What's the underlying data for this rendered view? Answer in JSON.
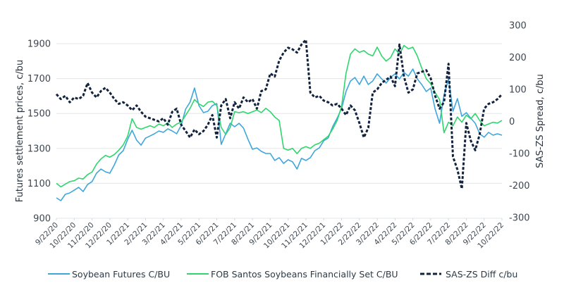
{
  "chart_data": {
    "type": "line",
    "title": "",
    "xlabel": "",
    "ylabel": "Futures settlement prices, c/bu",
    "ylabel_right": "SAS-ZS Spread, c/bu",
    "ylim": [
      900,
      1900
    ],
    "ylim_right": [
      -300,
      300
    ],
    "yticks": [
      900,
      1100,
      1300,
      1500,
      1700,
      1900
    ],
    "yticks_right": [
      -300,
      -200,
      -100,
      0,
      100,
      200,
      300
    ],
    "x_tick_labels": [
      "9/22/20",
      "10/22/20",
      "11/22/20",
      "12/22/20",
      "1/22/21",
      "2/22/21",
      "3/22/21",
      "4/22/21",
      "5/22/21",
      "6/22/21",
      "7/22/21",
      "8/22/21",
      "9/22/21",
      "10/22/21",
      "11/22/21",
      "12/22/21",
      "1/22/22",
      "2/22/22",
      "3/22/22",
      "4/22/22",
      "5/22/22",
      "6/22/22",
      "7/22/22",
      "8/22/22",
      "9/22/22",
      "10/22/22"
    ],
    "x_unit": "months since 9/22/20",
    "grid": true,
    "legend_position": "bottom",
    "series": [
      {
        "name": "Soybean Futures C/BU",
        "axis": "left",
        "color": "#3fa6dc",
        "style": "solid",
        "x": [
          0,
          0.25,
          0.5,
          0.75,
          1,
          1.25,
          1.5,
          1.75,
          2,
          2.25,
          2.5,
          2.75,
          3,
          3.25,
          3.5,
          3.75,
          4,
          4.25,
          4.5,
          4.75,
          5,
          5.25,
          5.5,
          5.75,
          6,
          6.25,
          6.5,
          6.75,
          7,
          7.25,
          7.5,
          7.75,
          8,
          8.25,
          8.5,
          8.75,
          9,
          9.25,
          9.5,
          9.75,
          10,
          10.25,
          10.5,
          10.75,
          11,
          11.25,
          11.5,
          11.75,
          12,
          12.25,
          12.5,
          12.75,
          13,
          13.25,
          13.5,
          13.75,
          14,
          14.25,
          14.5,
          14.75,
          15,
          15.25,
          15.5,
          15.75,
          16,
          16.25,
          16.5,
          16.75,
          17,
          17.25,
          17.5,
          17.75,
          18,
          18.25,
          18.5,
          18.75,
          19,
          19.25,
          19.5,
          19.75,
          20,
          20.25,
          20.5,
          20.75,
          21,
          21.25,
          21.5,
          21.75,
          22,
          22.25,
          22.5,
          22.75,
          23,
          23.25,
          23.5,
          23.75,
          24,
          24.25,
          24.5,
          24.75,
          25
        ],
        "values": [
          1017,
          1001,
          1037,
          1045,
          1061,
          1077,
          1053,
          1093,
          1110,
          1158,
          1182,
          1166,
          1158,
          1206,
          1263,
          1287,
          1352,
          1404,
          1347,
          1319,
          1359,
          1371,
          1384,
          1400,
          1392,
          1412,
          1400,
          1384,
          1432,
          1525,
          1565,
          1646,
          1545,
          1505,
          1513,
          1545,
          1557,
          1323,
          1384,
          1444,
          1424,
          1444,
          1416,
          1352,
          1295,
          1303,
          1283,
          1271,
          1271,
          1231,
          1247,
          1214,
          1235,
          1223,
          1182,
          1243,
          1231,
          1247,
          1287,
          1303,
          1344,
          1360,
          1424,
          1473,
          1529,
          1626,
          1686,
          1706,
          1666,
          1714,
          1666,
          1686,
          1727,
          1698,
          1674,
          1706,
          1727,
          1698,
          1735,
          1714,
          1755,
          1698,
          1666,
          1626,
          1646,
          1525,
          1444,
          1605,
          1698,
          1513,
          1585,
          1484,
          1505,
          1473,
          1444,
          1384,
          1364,
          1392,
          1376,
          1384,
          1376
        ]
      },
      {
        "name": "FOB Santos Soybeans Financially Set C/BU",
        "axis": "left",
        "color": "#2fd66e",
        "style": "solid",
        "x": [
          0,
          0.25,
          0.5,
          0.75,
          1,
          1.25,
          1.5,
          1.75,
          2,
          2.25,
          2.5,
          2.75,
          3,
          3.25,
          3.5,
          3.75,
          4,
          4.25,
          4.5,
          4.75,
          5,
          5.25,
          5.5,
          5.75,
          6,
          6.25,
          6.5,
          6.75,
          7,
          7.25,
          7.5,
          7.75,
          8,
          8.25,
          8.5,
          8.75,
          9,
          9.25,
          9.5,
          9.75,
          10,
          10.25,
          10.5,
          10.75,
          11,
          11.25,
          11.5,
          11.75,
          12,
          12.25,
          12.5,
          12.75,
          13,
          13.25,
          13.5,
          13.75,
          14,
          14.25,
          14.5,
          14.75,
          15,
          15.25,
          15.5,
          15.75,
          16,
          16.25,
          16.5,
          16.75,
          17,
          17.25,
          17.5,
          17.75,
          18,
          18.25,
          18.5,
          18.75,
          19,
          19.25,
          19.5,
          19.75,
          20,
          20.25,
          20.5,
          20.75,
          21,
          21.25,
          21.5,
          21.75,
          22,
          22.25,
          22.5,
          22.75,
          23,
          23.25,
          23.5,
          23.75,
          24,
          24.25,
          24.5,
          24.75,
          25
        ],
        "values": [
          1100,
          1080,
          1095,
          1110,
          1115,
          1130,
          1125,
          1150,
          1165,
          1210,
          1240,
          1260,
          1250,
          1265,
          1290,
          1320,
          1370,
          1470,
          1420,
          1410,
          1420,
          1430,
          1420,
          1440,
          1430,
          1445,
          1420,
          1440,
          1450,
          1490,
          1530,
          1580,
          1555,
          1540,
          1565,
          1570,
          1545,
          1420,
          1380,
          1420,
          1510,
          1505,
          1510,
          1500,
          1510,
          1520,
          1505,
          1530,
          1510,
          1480,
          1460,
          1300,
          1290,
          1300,
          1270,
          1300,
          1310,
          1300,
          1320,
          1330,
          1350,
          1370,
          1410,
          1460,
          1540,
          1730,
          1840,
          1870,
          1850,
          1860,
          1840,
          1830,
          1880,
          1830,
          1800,
          1820,
          1870,
          1840,
          1890,
          1870,
          1880,
          1830,
          1760,
          1700,
          1670,
          1620,
          1580,
          1390,
          1450,
          1430,
          1480,
          1450,
          1490,
          1470,
          1500,
          1460,
          1430,
          1440,
          1450,
          1445,
          1460
        ]
      },
      {
        "name": "SAS-ZS Diff c/bu",
        "axis": "right",
        "color": "#13233f",
        "style": "dashed",
        "x": [
          0,
          0.25,
          0.5,
          0.75,
          1,
          1.25,
          1.5,
          1.75,
          2,
          2.25,
          2.5,
          2.75,
          3,
          3.25,
          3.5,
          3.75,
          4,
          4.25,
          4.5,
          4.75,
          5,
          5.25,
          5.5,
          5.75,
          6,
          6.25,
          6.5,
          6.75,
          7,
          7.25,
          7.5,
          7.75,
          8,
          8.25,
          8.5,
          8.75,
          9,
          9.25,
          9.5,
          9.75,
          10,
          10.25,
          10.5,
          10.75,
          11,
          11.25,
          11.5,
          11.75,
          12,
          12.25,
          12.5,
          12.75,
          13,
          13.25,
          13.5,
          13.75,
          14,
          14.25,
          14.5,
          14.75,
          15,
          15.25,
          15.5,
          15.75,
          16,
          16.25,
          16.5,
          16.75,
          17,
          17.25,
          17.5,
          17.75,
          18,
          18.25,
          18.5,
          18.75,
          19,
          19.25,
          19.5,
          19.75,
          20,
          20.25,
          20.5,
          20.75,
          21,
          21.25,
          21.5,
          21.75,
          22,
          22.25,
          22.5,
          22.75,
          23,
          23.25,
          23.5,
          23.75,
          24,
          24.25,
          24.5,
          24.75,
          25
        ],
        "values": [
          85,
          70,
          80,
          60,
          75,
          70,
          80,
          120,
          90,
          75,
          95,
          105,
          90,
          70,
          55,
          60,
          50,
          35,
          50,
          30,
          15,
          10,
          5,
          0,
          10,
          -10,
          30,
          40,
          -10,
          -30,
          -50,
          -25,
          -40,
          -30,
          -10,
          20,
          -50,
          50,
          70,
          10,
          60,
          40,
          75,
          60,
          70,
          40,
          95,
          100,
          150,
          140,
          190,
          215,
          230,
          225,
          215,
          240,
          255,
          90,
          75,
          80,
          65,
          60,
          50,
          55,
          40,
          20,
          50,
          35,
          -5,
          -50,
          -20,
          90,
          100,
          120,
          130,
          140,
          110,
          240,
          140,
          90,
          100,
          150,
          155,
          160,
          135,
          80,
          40,
          60,
          180,
          -110,
          -150,
          -210,
          -5,
          -60,
          -90,
          -40,
          40,
          55,
          60,
          70,
          85
        ]
      }
    ]
  }
}
